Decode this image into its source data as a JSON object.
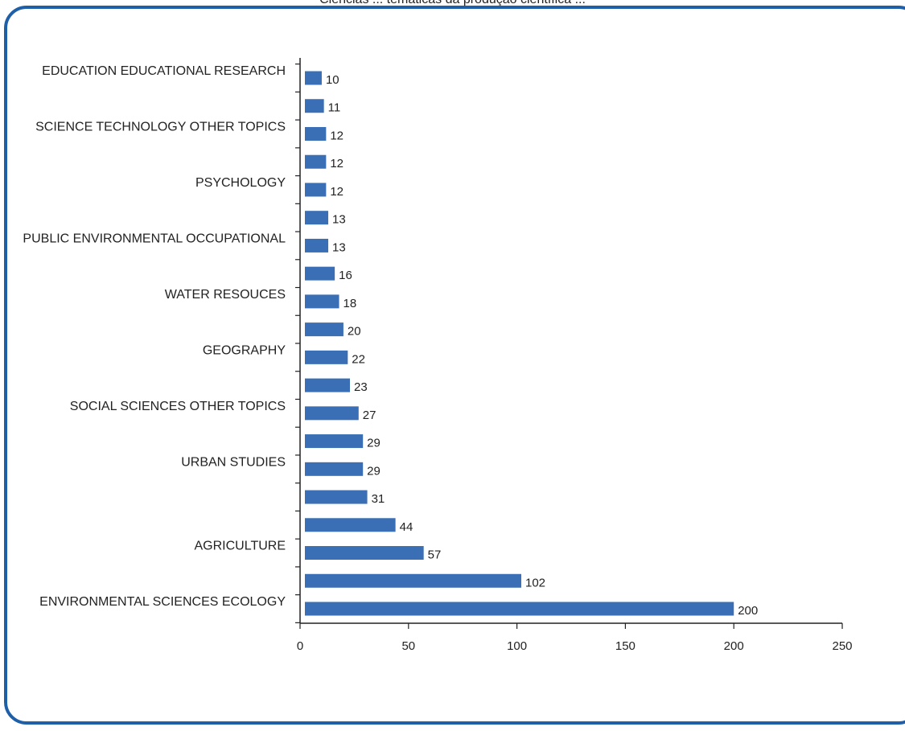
{
  "header": {
    "partial_title": "Ciências ... temáticas da produção científica ..."
  },
  "colors": {
    "bar": "#3a6fb5",
    "frame": "#1f5fa8",
    "axis": "#222222"
  },
  "chart_data": {
    "type": "bar",
    "orientation": "horizontal",
    "title": "",
    "xlabel": "",
    "ylabel": "",
    "xlim": [
      0,
      250
    ],
    "x_ticks": [
      0,
      50,
      100,
      150,
      200,
      250
    ],
    "grid": false,
    "legend": "none",
    "categories": [
      "EDUCATION EDUCATIONAL RESEARCH",
      "",
      "SCIENCE TECHNOLOGY OTHER TOPICS",
      "",
      "PSYCHOLOGY",
      "",
      "PUBLIC ENVIRONMENTAL OCCUPATIONAL",
      "",
      "WATER RESOUCES",
      "",
      "GEOGRAPHY",
      "",
      "SOCIAL SCIENCES OTHER TOPICS",
      "",
      "URBAN STUDIES",
      "",
      "",
      "AGRICULTURE",
      "",
      "ENVIRONMENTAL SCIENCES ECOLOGY"
    ],
    "values": [
      10,
      11,
      12,
      12,
      12,
      13,
      13,
      16,
      18,
      20,
      22,
      23,
      27,
      29,
      29,
      31,
      44,
      57,
      102,
      200
    ]
  }
}
